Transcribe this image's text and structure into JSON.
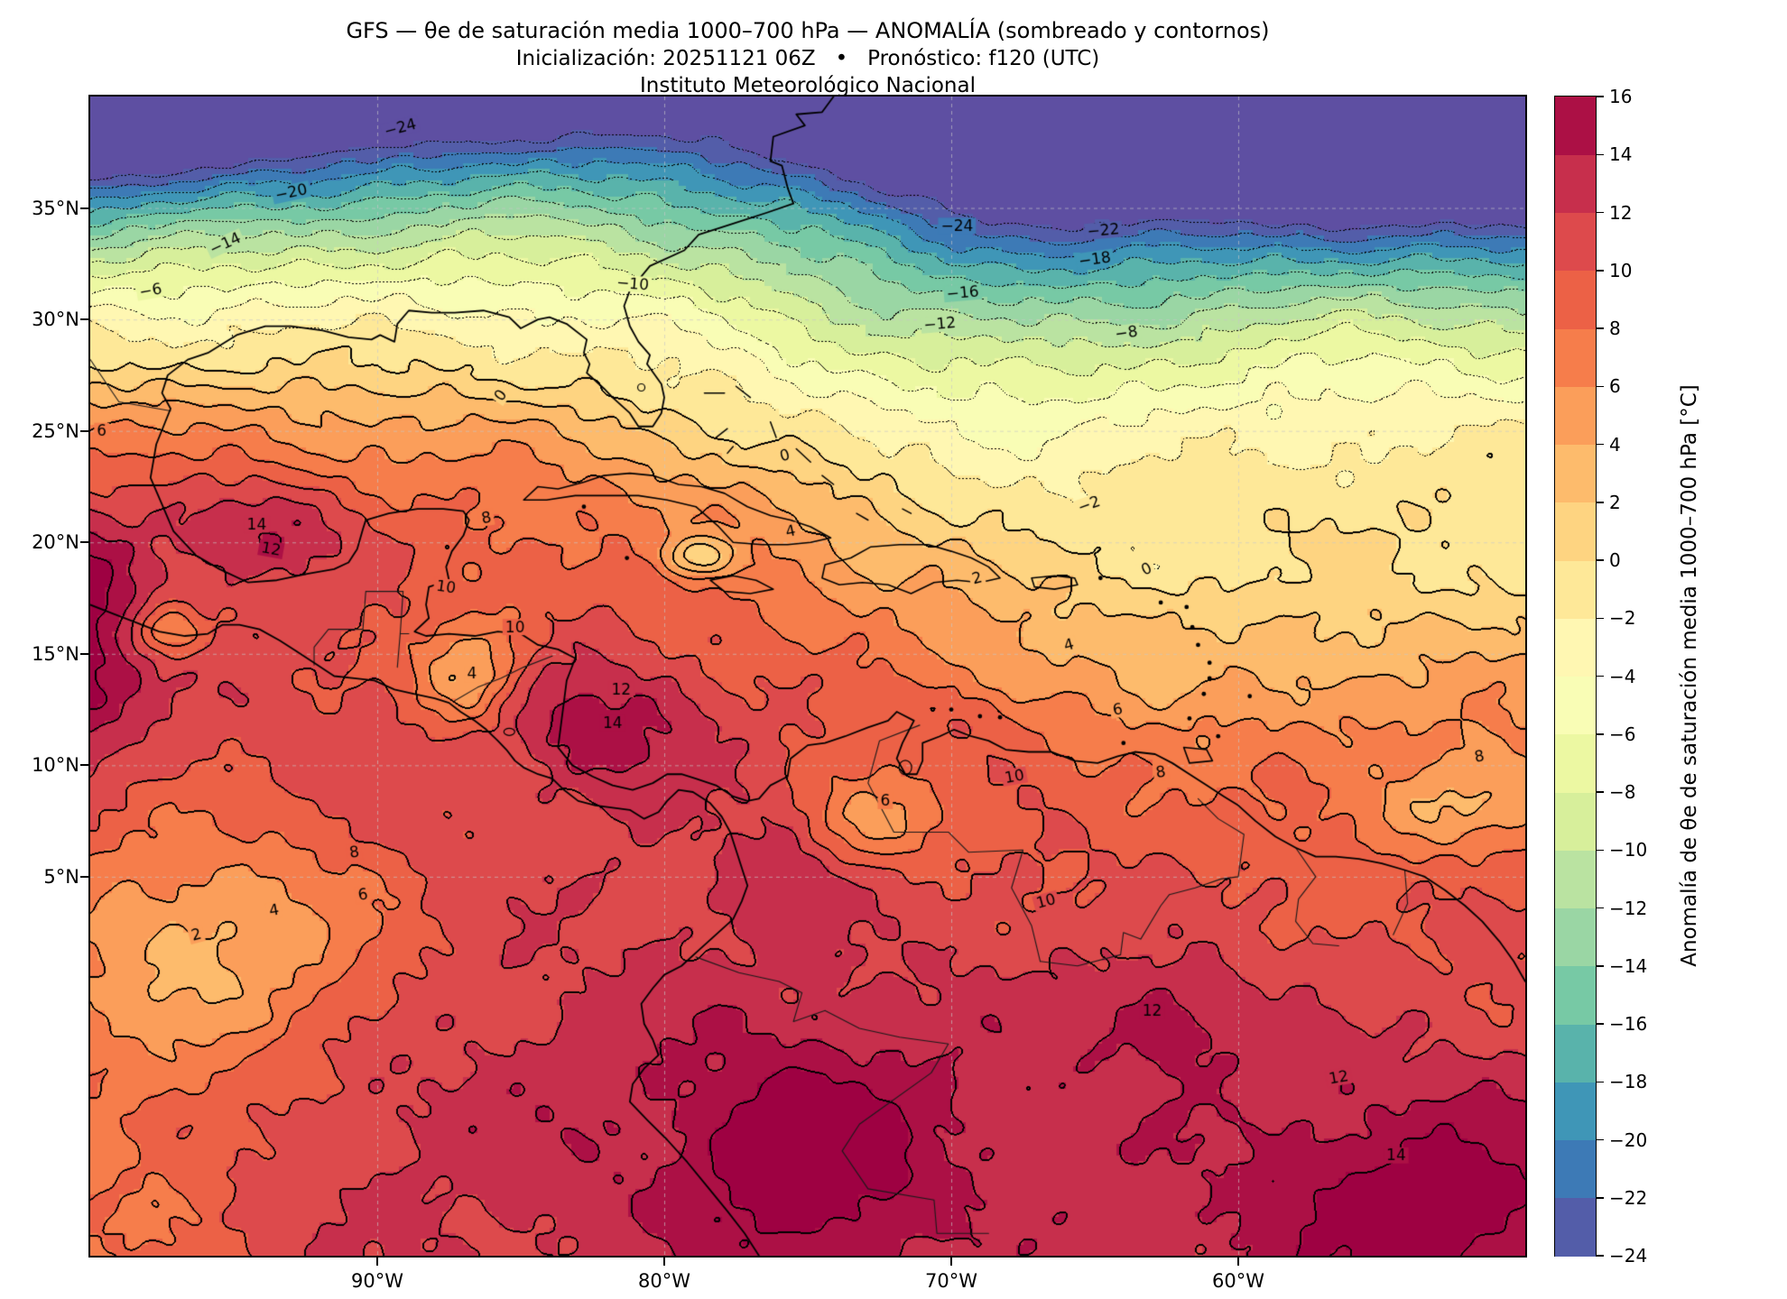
{
  "header": {
    "title_line1": "GFS — θe de saturación media 1000–700 hPa — ANOMALÍA (sombreado y contornos)",
    "title_line2": "Inicialización: 20251121 06Z   •   Pronóstico: f120 (UTC)",
    "title_line3": "Instituto Meteorológico Nacional"
  },
  "axes": {
    "x_ticks": [
      {
        "label": "90°W",
        "lon": -90
      },
      {
        "label": "80°W",
        "lon": -80
      },
      {
        "label": "70°W",
        "lon": -70
      },
      {
        "label": "60°W",
        "lon": -60
      }
    ],
    "y_ticks": [
      {
        "label": "35°N",
        "lat": 35
      },
      {
        "label": "30°N",
        "lat": 30
      },
      {
        "label": "25°N",
        "lat": 25
      },
      {
        "label": "20°N",
        "lat": 20
      },
      {
        "label": "15°N",
        "lat": 15
      },
      {
        "label": "10°N",
        "lat": 10
      },
      {
        "label": "5°N",
        "lat": 5
      }
    ]
  },
  "colorbar": {
    "label": "Anomalía de θe de saturación media 1000–700 hPa [°C]",
    "unit": "°C",
    "min": -24,
    "max": 16,
    "step": 2,
    "tick_values": [
      16,
      14,
      12,
      10,
      8,
      6,
      4,
      2,
      0,
      -2,
      -4,
      -6,
      -8,
      -10,
      -12,
      -14,
      -16,
      -18,
      -20,
      -22,
      -24
    ],
    "tick_labels": [
      "16",
      "14",
      "12",
      "10",
      "8",
      "6",
      "4",
      "2",
      "0",
      "−2",
      "−4",
      "−6",
      "−8",
      "−10",
      "−12",
      "−14",
      "−16",
      "−18",
      "−20",
      "−22",
      "−24"
    ],
    "band_colors": [
      "#535da9",
      "#3d7ab6",
      "#3f96b7",
      "#59b3ab",
      "#77c9a5",
      "#9ad6a4",
      "#bae3a1",
      "#d7ef9b",
      "#ecf8a2",
      "#f9fdb5",
      "#fff7b2",
      "#fee898",
      "#fed481",
      "#fdbb6c",
      "#fb9e5a",
      "#f67d4b",
      "#ec6146",
      "#dd4a4c",
      "#c72f4c",
      "#ac1045"
    ],
    "under_color": "#5e4fa2",
    "over_color": "#9e0142"
  },
  "chart_data": {
    "type": "heatmap",
    "subtype": "filled-contour-map-with-line-contours",
    "model": "GFS",
    "variable": "θe de saturación media 1000–700 hPa",
    "quantity": "ANOMALÍA (sombreado y contornos)",
    "init": "20251121 06Z",
    "forecast": "f120 (UTC)",
    "lon_range": [
      -100,
      -50
    ],
    "lat_range": [
      -12,
      40
    ],
    "contour_interval": 2,
    "levels": [
      -24,
      -22,
      -20,
      -18,
      -16,
      -14,
      -12,
      -10,
      -8,
      -6,
      -4,
      -2,
      0,
      2,
      4,
      6,
      8,
      10,
      12,
      14,
      16
    ],
    "negative_contour_style": "dotted",
    "positive_contour_style": "solid",
    "grid_resolution_deg": 0.25,
    "field_model": {
      "zero_line": {
        "base": 23,
        "amplitude": 5,
        "center_lon": -73,
        "scale": 9
      },
      "north": {
        "a_west": 1.1,
        "a_east": 0.3,
        "b_west": 0.22,
        "c_east": 0.005,
        "floor": -27
      },
      "south": {
        "p_west": 11.5,
        "p_east": 12.0,
        "tau_west": 4,
        "tau_east": 9
      },
      "features": [
        {
          "name": "atlantic-trough",
          "lon": -71,
          "lat": 31,
          "amp": -2.5,
          "slon": 6,
          "slat": 5
        },
        {
          "name": "east-atlantic-ridge",
          "lon": -57,
          "lat": 29,
          "amp": 2.5,
          "slon": 7,
          "slat": 6
        },
        {
          "name": "south-broad-warm",
          "lon": -75,
          "lat": -6,
          "amp": 2,
          "slon": 12,
          "slat": 5
        },
        {
          "name": "mexico-pacific-max-1",
          "lon": -101,
          "lat": 18.5,
          "amp": 6,
          "slon": 2.5,
          "slat": 2.5
        },
        {
          "name": "mexico-pacific-max-2",
          "lon": -101,
          "lat": 13.5,
          "amp": 5,
          "slon": 2,
          "slat": 2.5
        },
        {
          "name": "campeche-max",
          "lon": -94,
          "lat": 20.8,
          "amp": 4.8,
          "slon": 2.2,
          "slat": 1.6
        },
        {
          "name": "southwest-caribbean-max",
          "lon": -82,
          "lat": 12,
          "amp": 4.5,
          "slon": 2.8,
          "slat": 2.2
        },
        {
          "name": "peru-max",
          "lon": -75,
          "lat": -8,
          "amp": 5,
          "slon": 3,
          "slat": 3.5
        },
        {
          "name": "southeast-corner-max",
          "lon": -53,
          "lat": -10,
          "amp": 5.5,
          "slon": 5,
          "slat": 4
        },
        {
          "name": "guiana-shield-max",
          "lon": -62.5,
          "lat": -1.5,
          "amp": 3.5,
          "slon": 2,
          "slat": 2
        },
        {
          "name": "aruba-max",
          "lon": -69.5,
          "lat": 12.2,
          "amp": 2,
          "slon": 1.2,
          "slat": 1
        },
        {
          "name": "colombia-max",
          "lon": -76,
          "lat": 5.5,
          "amp": 2.5,
          "slon": 1.5,
          "slat": 2
        },
        {
          "name": "honduras-min",
          "lon": -86.8,
          "lat": 14.1,
          "amp": -7.5,
          "slon": 1.4,
          "slat": 1.8
        },
        {
          "name": "llanos-min",
          "lon": -72.5,
          "lat": 7.5,
          "amp": -5,
          "slon": 2,
          "slat": 1.5
        },
        {
          "name": "east-pacific-tehuantepec-min",
          "lon": -96,
          "lat": 2,
          "amp": -8,
          "slon": 4.5,
          "slat": 4
        },
        {
          "name": "oaxaca-min",
          "lon": -97.3,
          "lat": 16,
          "amp": -7,
          "slon": 0.9,
          "slat": 0.9
        },
        {
          "name": "guiana-coast-min",
          "lon": -53,
          "lat": 8,
          "amp": -4,
          "slon": 2.5,
          "slat": 1.4
        },
        {
          "name": "windward-min",
          "lon": -62.5,
          "lat": 13.5,
          "amp": -2.5,
          "slon": 1.5,
          "slat": 1.2
        },
        {
          "name": "cuba-south-min",
          "lon": -78.9,
          "lat": 19.4,
          "amp": -7.5,
          "slon": 0.9,
          "slat": 0.7
        },
        {
          "name": "east-pacific-min",
          "lon": -100,
          "lat": -9,
          "amp": -4,
          "slon": 4,
          "slat": 5
        },
        {
          "name": "east-caribbean-soft-min",
          "lon": -66,
          "lat": 16,
          "amp": -1.5,
          "slon": 8,
          "slat": 3
        }
      ],
      "noise": [
        [
          0.8,
          0.55,
          0.62,
          1.3
        ],
        [
          0.55,
          1.3,
          1.1,
          2.1
        ],
        [
          0.38,
          2.6,
          2.2,
          0.7
        ],
        [
          0.3,
          3.7,
          3.1,
          2.0
        ]
      ]
    },
    "contour_labels": [
      {
        "text": "−24",
        "lon": -89.2,
        "lat": 38.6,
        "rot": -15
      },
      {
        "text": "−20",
        "lon": -93.0,
        "lat": 35.7,
        "rot": -12
      },
      {
        "text": "−14",
        "lon": -95.3,
        "lat": 33.4,
        "rot": -25
      },
      {
        "text": "−6",
        "lon": -97.9,
        "lat": 31.3,
        "rot": -10
      },
      {
        "text": "−10",
        "lon": -81.1,
        "lat": 31.6,
        "rot": 5
      },
      {
        "text": "−24",
        "lon": -69.8,
        "lat": 34.2,
        "rot": 0
      },
      {
        "text": "−22",
        "lon": -64.7,
        "lat": 34.0,
        "rot": -5
      },
      {
        "text": "−18",
        "lon": -65.0,
        "lat": 32.7,
        "rot": -8
      },
      {
        "text": "−16",
        "lon": -69.6,
        "lat": 31.2,
        "rot": -5
      },
      {
        "text": "−12",
        "lon": -70.4,
        "lat": 29.8,
        "rot": -5
      },
      {
        "text": "−8",
        "lon": -63.9,
        "lat": 29.4,
        "rot": -8
      },
      {
        "text": "−2",
        "lon": -65.2,
        "lat": 21.7,
        "rot": -20
      },
      {
        "text": "0",
        "lon": -85.7,
        "lat": 26.6,
        "rot": -55
      },
      {
        "text": "0",
        "lon": -75.8,
        "lat": 23.9,
        "rot": -15
      },
      {
        "text": "0",
        "lon": -63.2,
        "lat": 18.8,
        "rot": -25
      },
      {
        "text": "2",
        "lon": -69.1,
        "lat": 18.4,
        "rot": -15
      },
      {
        "text": "2",
        "lon": -96.3,
        "lat": 2.4,
        "rot": -15
      },
      {
        "text": "4",
        "lon": -75.6,
        "lat": 20.5,
        "rot": -12
      },
      {
        "text": "4",
        "lon": -65.9,
        "lat": 15.4,
        "rot": -15
      },
      {
        "text": "4",
        "lon": -93.6,
        "lat": 3.5,
        "rot": -10
      },
      {
        "text": "4",
        "lon": -86.7,
        "lat": 14.1,
        "rot": 0
      },
      {
        "text": "6",
        "lon": -99.6,
        "lat": 25.0,
        "rot": 0
      },
      {
        "text": "6",
        "lon": -64.2,
        "lat": 12.5,
        "rot": -10
      },
      {
        "text": "6",
        "lon": -90.5,
        "lat": 4.2,
        "rot": -8
      },
      {
        "text": "6",
        "lon": -72.3,
        "lat": 8.4,
        "rot": 0
      },
      {
        "text": "8",
        "lon": -86.2,
        "lat": 21.1,
        "rot": -10
      },
      {
        "text": "8",
        "lon": -62.7,
        "lat": 9.7,
        "rot": -8
      },
      {
        "text": "8",
        "lon": -51.6,
        "lat": 10.4,
        "rot": -10
      },
      {
        "text": "8",
        "lon": -90.8,
        "lat": 6.1,
        "rot": -8
      },
      {
        "text": "10",
        "lon": -87.6,
        "lat": 18.0,
        "rot": 8
      },
      {
        "text": "10",
        "lon": -85.2,
        "lat": 16.2,
        "rot": 0
      },
      {
        "text": "10",
        "lon": -67.8,
        "lat": 9.5,
        "rot": -10
      },
      {
        "text": "10",
        "lon": -66.7,
        "lat": 3.9,
        "rot": -15
      },
      {
        "text": "12",
        "lon": -93.7,
        "lat": 19.7,
        "rot": 10
      },
      {
        "text": "12",
        "lon": -81.5,
        "lat": 13.4,
        "rot": 0
      },
      {
        "text": "12",
        "lon": -63.0,
        "lat": -1.0,
        "rot": 0
      },
      {
        "text": "12",
        "lon": -56.5,
        "lat": -4.0,
        "rot": -10
      },
      {
        "text": "14",
        "lon": -94.2,
        "lat": 20.8,
        "rot": 0
      },
      {
        "text": "14",
        "lon": -81.8,
        "lat": 11.9,
        "rot": 0
      },
      {
        "text": "14",
        "lon": -54.5,
        "lat": -7.5,
        "rot": 0
      },
      {
        "text": "16",
        "lon": -99.8,
        "lat": 19.2,
        "rot": 0
      }
    ]
  }
}
